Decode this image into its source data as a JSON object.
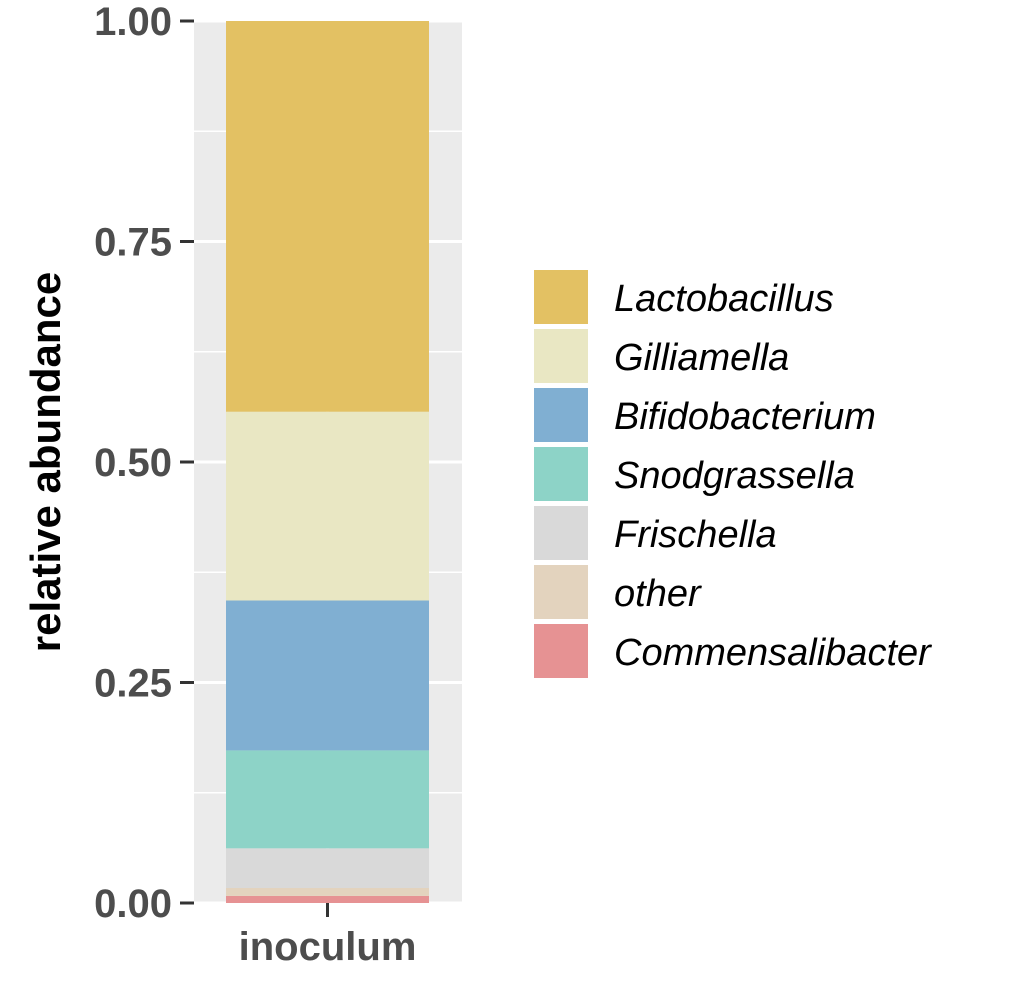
{
  "chart_data": {
    "type": "bar",
    "stacked": true,
    "normalized": true,
    "categories": [
      "inoculum"
    ],
    "ylabel": "relative abundance",
    "xlabel": "",
    "ylim": [
      0,
      1
    ],
    "yticks": [
      0,
      0.25,
      0.5,
      0.75,
      1
    ],
    "ytick_labels": [
      "0.00",
      "0.25",
      "0.50",
      "0.75",
      "1.00"
    ],
    "grid": true,
    "legend_position": "right",
    "series": [
      {
        "name": "Lactobacillus",
        "color": "#E3C163",
        "values": [
          0.443
        ]
      },
      {
        "name": "Gilliamella",
        "color": "#E9E7C3",
        "values": [
          0.214
        ]
      },
      {
        "name": "Bifidobacterium",
        "color": "#80AFD2",
        "values": [
          0.17
        ]
      },
      {
        "name": "Snodgrassella",
        "color": "#8DD3C7",
        "values": [
          0.111
        ]
      },
      {
        "name": "Frischella",
        "color": "#D9D9D9",
        "values": [
          0.045
        ]
      },
      {
        "name": "other",
        "color": "#E3D3BE",
        "values": [
          0.009
        ]
      },
      {
        "name": "Commensalibacter",
        "color": "#E69293",
        "values": [
          0.008
        ]
      }
    ]
  }
}
